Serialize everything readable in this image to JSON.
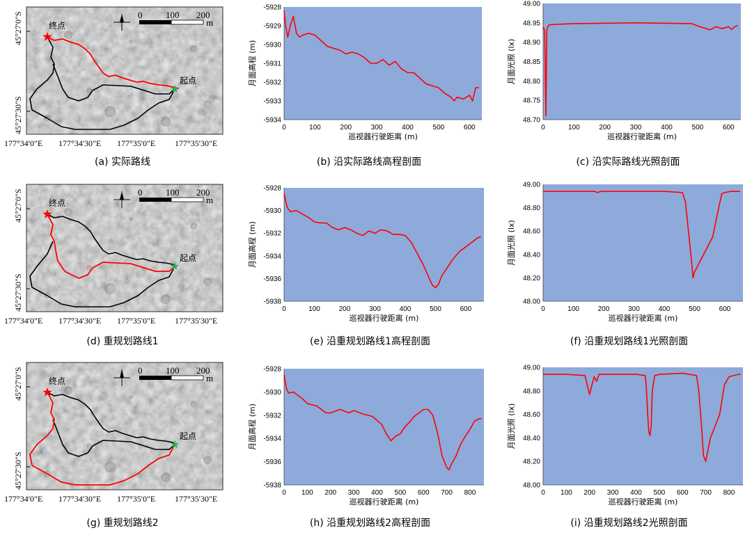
{
  "maps": [
    {
      "caption": "(a) 实际路线",
      "start_label": "起点",
      "end_label": "终点",
      "lat_labels": [
        "45°27'0\"S",
        "45°27'30\"S"
      ],
      "lon_labels": [
        "177°34'0\"E",
        "177°34'30\"E",
        "177°35'0\"E",
        "177°35'30\"E"
      ],
      "scale_labels": [
        "0",
        "100",
        "200"
      ],
      "scale_unit": "m",
      "highlight": "actual"
    },
    {
      "caption": "(d) 重规划路线1",
      "start_label": "起点",
      "end_label": "终点",
      "lat_labels": [
        "45°27'0\"S",
        "45°27'30\"S"
      ],
      "lon_labels": [
        "177°34'0\"E",
        "177°34'30\"E",
        "177°35'0\"E",
        "177°35'30\"E"
      ],
      "scale_labels": [
        "0",
        "100",
        "200"
      ],
      "scale_unit": "m",
      "highlight": "route1"
    },
    {
      "caption": "(g) 重规划路线2",
      "start_label": "起点",
      "end_label": "终点",
      "lat_labels": [
        "45°27'0\"S",
        "45°27'30\"S"
      ],
      "lon_labels": [
        "177°34'0\"E",
        "177°34'30\"E",
        "177°35'0\"E",
        "177°35'30\"E"
      ],
      "scale_labels": [
        "0",
        "100",
        "200"
      ],
      "scale_unit": "m",
      "highlight": "route2"
    }
  ],
  "colors": {
    "plot_bg": "#8eaadb",
    "line": "#ff0000",
    "start_marker": "#22b14c",
    "end_marker": "#ff0000",
    "map_bg": "#a3a3a3"
  },
  "chart_data": [
    {
      "id": "b",
      "type": "line",
      "caption": "(b) 沿实际路线高程剖面",
      "xlabel": "巡视器行驶距离 (m)",
      "ylabel": "月面高程 (m)",
      "xlim": [
        0,
        640
      ],
      "ylim": [
        -5934,
        -5928
      ],
      "xticks": [
        0,
        100,
        200,
        300,
        400,
        500,
        600
      ],
      "yticks": [
        -5928,
        -5929,
        -5930,
        -5931,
        -5932,
        -5933,
        -5934
      ],
      "ytick_labels": [
        "-5928",
        "-5929",
        "-5930",
        "-5931",
        "-5932",
        "-5933",
        "-5934"
      ],
      "x": [
        0,
        5,
        12,
        20,
        30,
        40,
        50,
        60,
        80,
        100,
        120,
        140,
        160,
        180,
        200,
        220,
        240,
        260,
        280,
        300,
        320,
        340,
        360,
        380,
        400,
        420,
        440,
        460,
        480,
        500,
        520,
        540,
        550,
        560,
        580,
        600,
        610,
        620,
        630
      ],
      "y": [
        -5928.2,
        -5929.0,
        -5929.6,
        -5929.0,
        -5928.5,
        -5929.4,
        -5929.6,
        -5929.5,
        -5929.4,
        -5929.5,
        -5929.8,
        -5930.1,
        -5930.2,
        -5930.3,
        -5930.5,
        -5930.4,
        -5930.5,
        -5930.7,
        -5931.0,
        -5931.0,
        -5930.8,
        -5931.1,
        -5930.9,
        -5931.3,
        -5931.5,
        -5931.5,
        -5931.8,
        -5932.1,
        -5932.2,
        -5932.3,
        -5932.6,
        -5932.8,
        -5933.0,
        -5932.8,
        -5932.9,
        -5932.7,
        -5933.0,
        -5932.3,
        -5932.3
      ]
    },
    {
      "id": "c",
      "type": "line",
      "caption": "(c) 沿实际路线光照剖面",
      "xlabel": "巡视器行驶距离 (m)",
      "ylabel": "月面光照 (lx)",
      "xlim": [
        0,
        640
      ],
      "ylim": [
        48.7,
        49.0
      ],
      "xticks": [
        0,
        100,
        200,
        300,
        400,
        500,
        600
      ],
      "yticks": [
        49.0,
        48.95,
        48.9,
        48.85,
        48.8,
        48.75,
        48.7
      ],
      "ytick_labels": [
        "49.00",
        "48.95",
        "48.90",
        "48.85",
        "48.80",
        "48.75",
        "48.70"
      ],
      "x": [
        0,
        5,
        9,
        12,
        15,
        20,
        40,
        100,
        200,
        300,
        400,
        480,
        500,
        520,
        540,
        560,
        580,
        600,
        610,
        620,
        630
      ],
      "y": [
        48.94,
        48.93,
        48.71,
        48.93,
        48.94,
        48.945,
        48.946,
        48.948,
        48.949,
        48.95,
        48.949,
        48.948,
        48.942,
        48.937,
        48.932,
        48.94,
        48.935,
        48.94,
        48.933,
        48.94,
        48.943
      ]
    },
    {
      "id": "e",
      "type": "line",
      "caption": "(e) 沿重规划路线1高程剖面",
      "xlabel": "巡视器行驶距离 (m)",
      "ylabel": "月面高程 (m)",
      "xlim": [
        0,
        660
      ],
      "ylim": [
        -5938,
        -5928
      ],
      "xticks": [
        0,
        100,
        200,
        300,
        400,
        500,
        600
      ],
      "yticks": [
        -5928,
        -5930,
        -5932,
        -5934,
        -5936,
        -5938
      ],
      "ytick_labels": [
        "-5928",
        "-5930",
        "-5932",
        "-5934",
        "-5936",
        "-5938"
      ],
      "x": [
        0,
        10,
        20,
        40,
        60,
        80,
        100,
        120,
        140,
        160,
        180,
        200,
        220,
        240,
        260,
        280,
        300,
        320,
        340,
        360,
        380,
        400,
        420,
        440,
        460,
        480,
        490,
        500,
        510,
        520,
        540,
        560,
        580,
        600,
        620,
        640,
        650
      ],
      "y": [
        -5928.5,
        -5929.7,
        -5930.1,
        -5930.0,
        -5930.3,
        -5930.6,
        -5931.0,
        -5931.1,
        -5931.1,
        -5931.5,
        -5931.7,
        -5931.5,
        -5931.7,
        -5932.0,
        -5932.2,
        -5931.8,
        -5932.0,
        -5931.7,
        -5931.8,
        -5932.1,
        -5932.1,
        -5932.2,
        -5932.8,
        -5933.8,
        -5934.8,
        -5936.0,
        -5936.6,
        -5936.8,
        -5936.5,
        -5935.8,
        -5935.0,
        -5934.2,
        -5933.6,
        -5933.2,
        -5932.8,
        -5932.4,
        -5932.3
      ]
    },
    {
      "id": "f",
      "type": "line",
      "caption": "(f) 沿重规划路线1光照剖面",
      "xlabel": "巡视器行驶距离 (m)",
      "ylabel": "月面光照 (lx)",
      "xlim": [
        0,
        660
      ],
      "ylim": [
        48.0,
        49.0
      ],
      "xticks": [
        0,
        100,
        200,
        300,
        400,
        500,
        600
      ],
      "yticks": [
        49.0,
        48.8,
        48.6,
        48.4,
        48.2,
        48.0
      ],
      "ytick_labels": [
        "49.00",
        "48.80",
        "48.60",
        "48.40",
        "48.20",
        "48.00"
      ],
      "x": [
        0,
        100,
        170,
        180,
        190,
        200,
        300,
        400,
        460,
        470,
        480,
        490,
        495,
        500,
        510,
        520,
        540,
        560,
        580,
        590,
        600,
        620,
        640,
        650
      ],
      "y": [
        48.94,
        48.94,
        48.94,
        48.93,
        48.94,
        48.94,
        48.94,
        48.94,
        48.93,
        48.85,
        48.6,
        48.35,
        48.2,
        48.25,
        48.3,
        48.35,
        48.45,
        48.55,
        48.8,
        48.92,
        48.93,
        48.94,
        48.94,
        48.94
      ]
    },
    {
      "id": "h",
      "type": "line",
      "caption": "(h) 沿重规划路线2高程剖面",
      "xlabel": "巡视器行驶距离 (m)",
      "ylabel": "月面高程 (m)",
      "xlim": [
        0,
        860
      ],
      "ylim": [
        -5938,
        -5928
      ],
      "xticks": [
        0,
        100,
        200,
        300,
        400,
        500,
        600,
        700,
        800
      ],
      "yticks": [
        -5928,
        -5930,
        -5932,
        -5934,
        -5936,
        -5938
      ],
      "ytick_labels": [
        "-5928",
        "-5930",
        "-5932",
        "-5934",
        "-5936",
        "-5938"
      ],
      "x": [
        0,
        10,
        20,
        40,
        60,
        80,
        100,
        140,
        180,
        200,
        240,
        280,
        300,
        340,
        380,
        420,
        440,
        460,
        480,
        500,
        520,
        540,
        560,
        580,
        600,
        620,
        640,
        660,
        680,
        700,
        710,
        720,
        740,
        760,
        780,
        800,
        820,
        840,
        850
      ],
      "y": [
        -5928.5,
        -5929.7,
        -5930.1,
        -5930.0,
        -5930.3,
        -5930.6,
        -5931.0,
        -5931.2,
        -5931.8,
        -5931.8,
        -5931.5,
        -5931.8,
        -5931.6,
        -5931.9,
        -5932.1,
        -5932.8,
        -5933.6,
        -5934.2,
        -5933.8,
        -5933.6,
        -5933.0,
        -5932.6,
        -5932.1,
        -5931.8,
        -5931.5,
        -5931.5,
        -5932.0,
        -5933.5,
        -5935.5,
        -5936.5,
        -5936.7,
        -5936.2,
        -5935.5,
        -5934.5,
        -5933.8,
        -5933.2,
        -5932.5,
        -5932.3,
        -5932.3
      ]
    },
    {
      "id": "i",
      "type": "line",
      "caption": "(i) 沿重规划路线2光照剖面",
      "xlabel": "巡视器行驶距离 (m)",
      "ylabel": "月面光照 (lx)",
      "xlim": [
        0,
        860
      ],
      "ylim": [
        48.0,
        49.0
      ],
      "xticks": [
        0,
        100,
        200,
        300,
        400,
        500,
        600,
        700,
        800
      ],
      "yticks": [
        49.0,
        48.8,
        48.6,
        48.4,
        48.2,
        48.0
      ],
      "ytick_labels": [
        "49.00",
        "48.80",
        "48.60",
        "48.40",
        "48.20",
        "48.00"
      ],
      "x": [
        0,
        100,
        180,
        190,
        200,
        210,
        220,
        230,
        240,
        250,
        300,
        400,
        440,
        445,
        450,
        455,
        460,
        465,
        470,
        480,
        500,
        600,
        660,
        670,
        680,
        690,
        700,
        710,
        720,
        740,
        760,
        780,
        800,
        840,
        850
      ],
      "y": [
        48.94,
        48.94,
        48.93,
        48.85,
        48.77,
        48.85,
        48.92,
        48.88,
        48.94,
        48.94,
        48.94,
        48.94,
        48.93,
        48.8,
        48.6,
        48.45,
        48.42,
        48.5,
        48.8,
        48.93,
        48.94,
        48.95,
        48.93,
        48.8,
        48.55,
        48.25,
        48.2,
        48.3,
        48.4,
        48.5,
        48.6,
        48.85,
        48.92,
        48.94,
        48.94
      ]
    }
  ]
}
